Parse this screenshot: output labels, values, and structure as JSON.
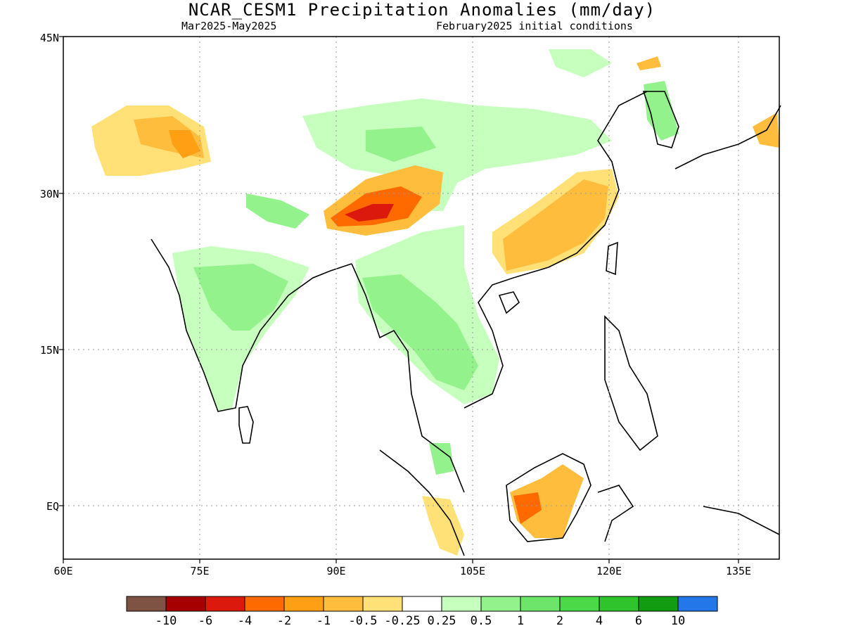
{
  "title": "NCAR_CESM1 Precipitation Anomalies (mm/day)",
  "subtitle_left": "Mar2025-May2025",
  "subtitle_right": "February2025 initial conditions",
  "lat_labels": [
    "45N",
    "30N",
    "15N",
    "EQ"
  ],
  "lon_labels": [
    "60E",
    "75E",
    "90E",
    "105E",
    "120E",
    "135E"
  ],
  "colorbar": {
    "labels": [
      "-10",
      "-6",
      "-4",
      "-2",
      "-1",
      "-0.5",
      "-0.25",
      "0.25",
      "0.5",
      "1",
      "2",
      "4",
      "6",
      "10"
    ],
    "colors": [
      "#7f5344",
      "#a60000",
      "#db1a0d",
      "#ff6a00",
      "#ff9f14",
      "#ffbd3e",
      "#ffe178",
      "#ffffff",
      "#c6ffbe",
      "#93f28c",
      "#6de56a",
      "#4bd948",
      "#2fc42c",
      "#119c11",
      "#2477e8"
    ]
  }
}
